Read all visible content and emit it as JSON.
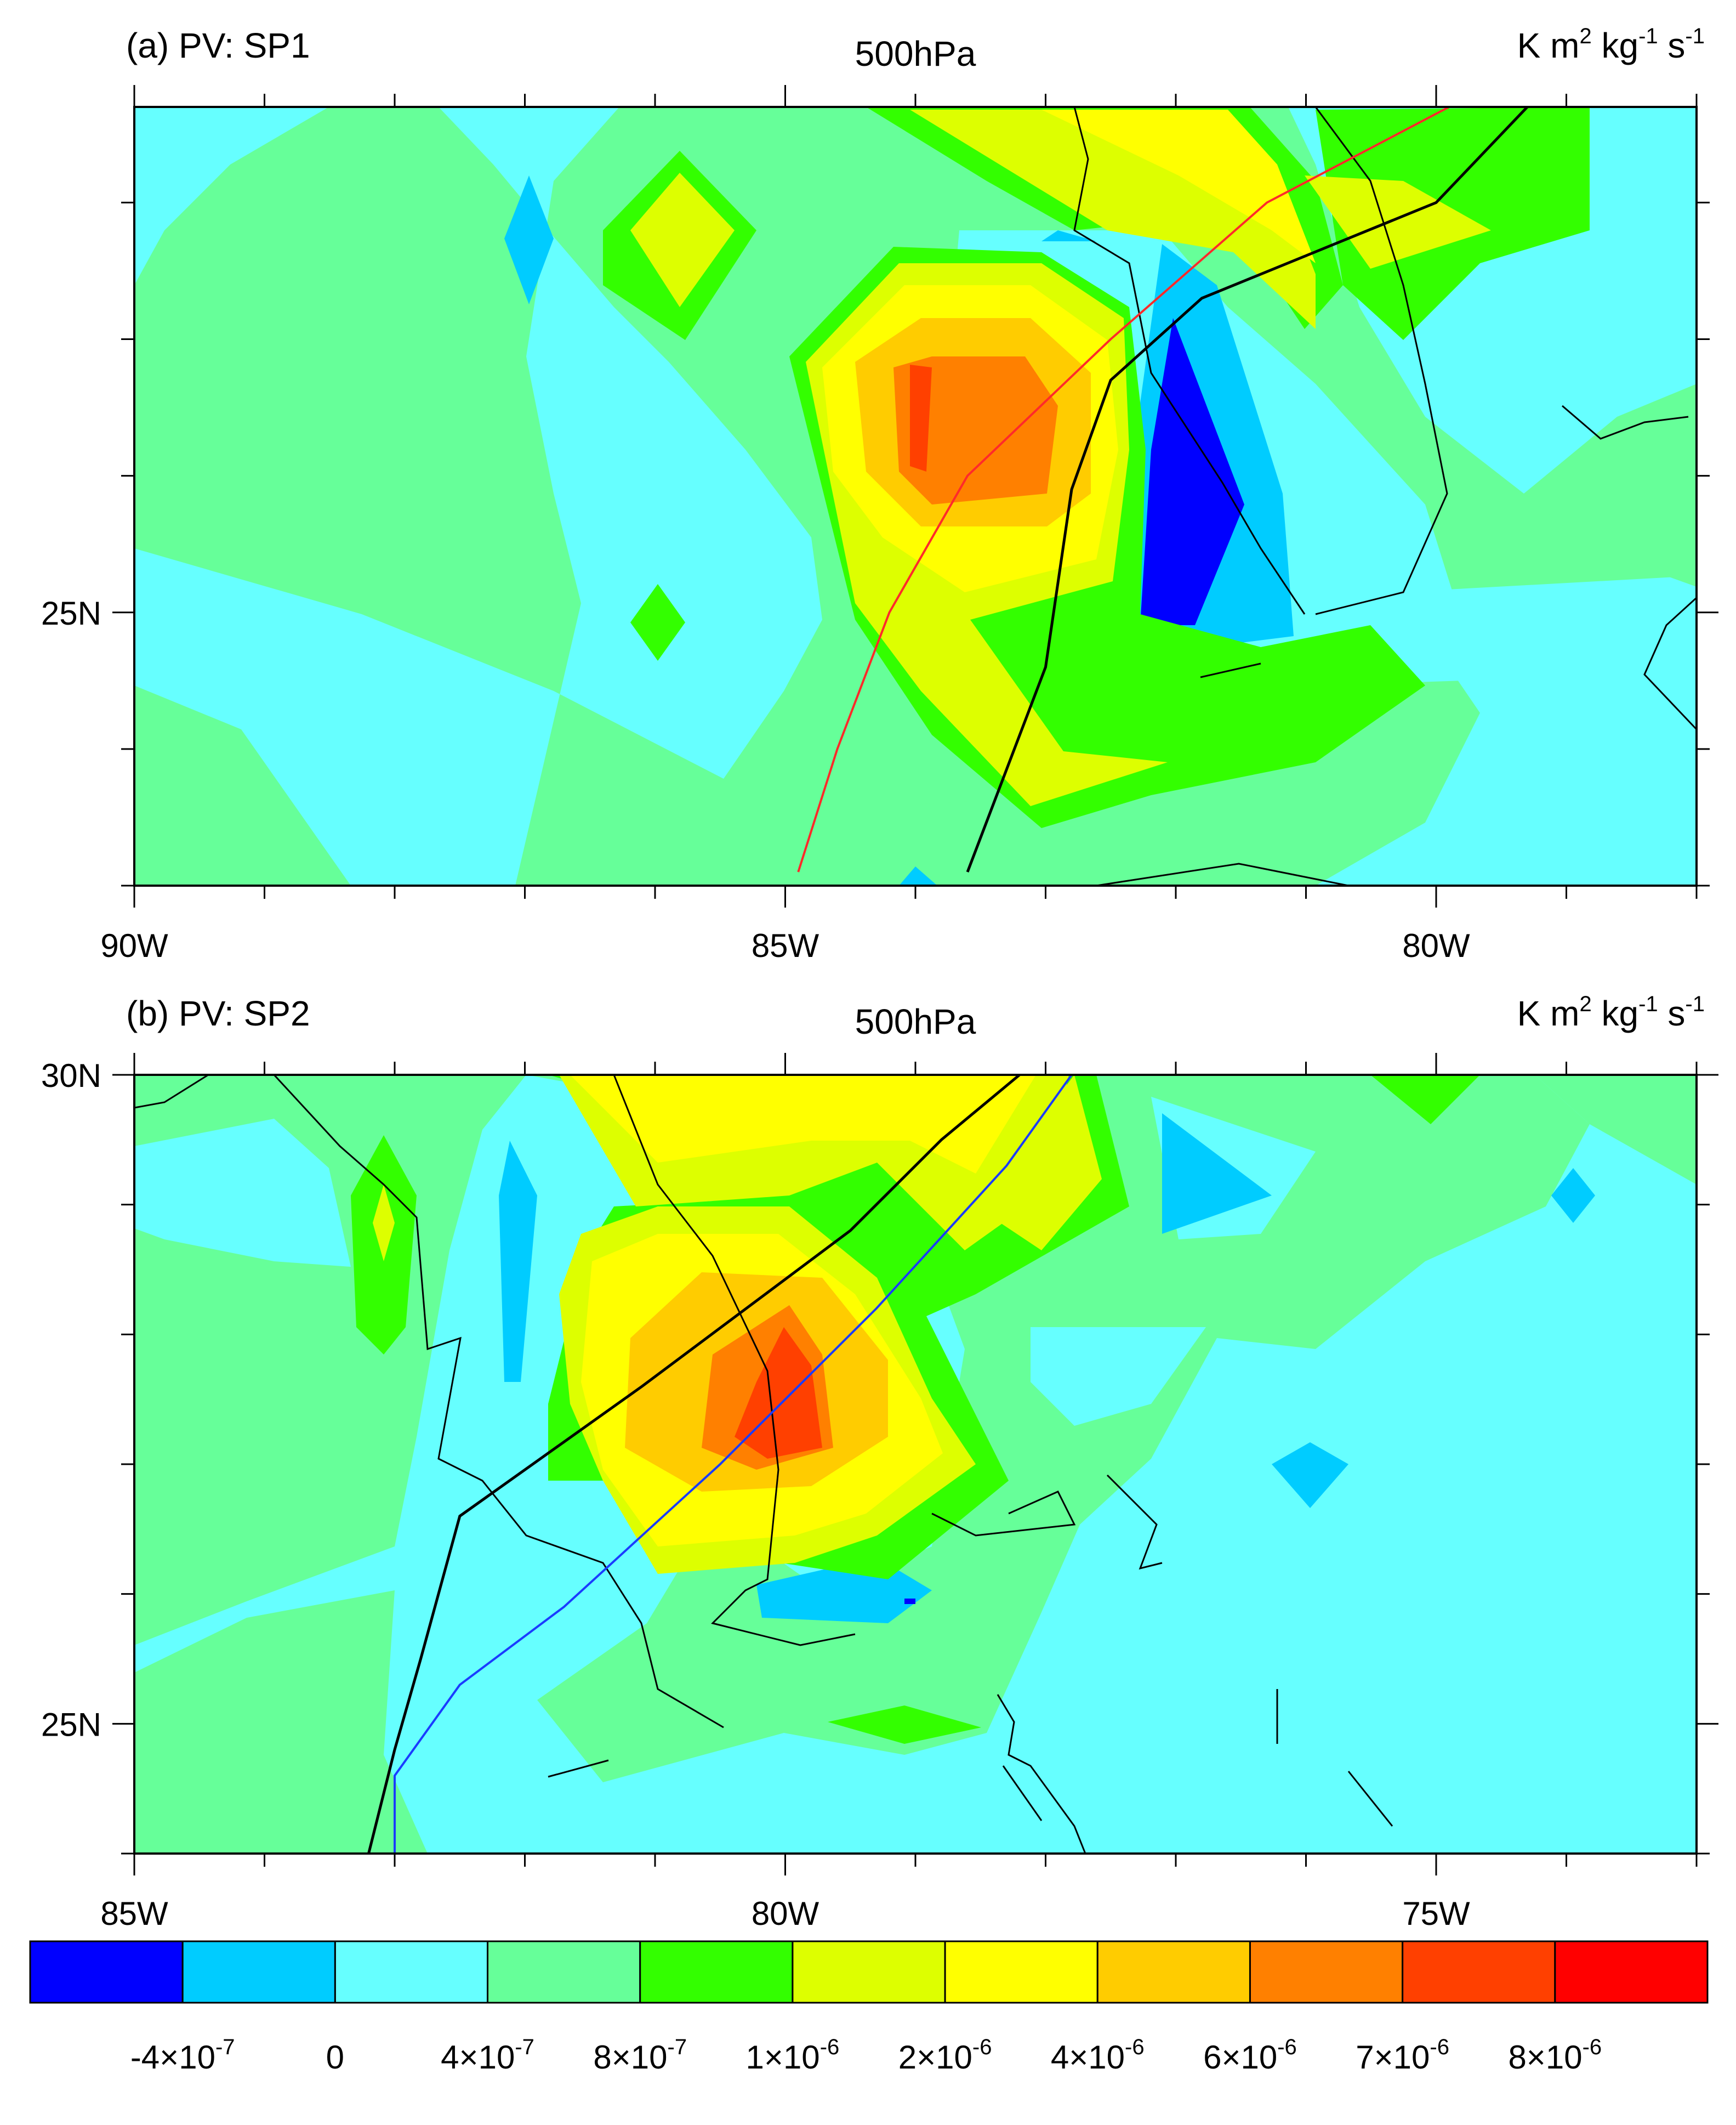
{
  "chart_data": [
    {
      "type": "heatmap",
      "panel_label": "(a) PV: SP1",
      "level": "500hPa",
      "units": {
        "base": "K m",
        "m_exp": "2",
        "kg": " kg",
        "kg_exp": "-1",
        "s": " s",
        "s_exp": "-1"
      },
      "xlim": [
        -90,
        -78
      ],
      "ylim": [
        23.0,
        28.7
      ],
      "x_ticks": [
        {
          "v": -90,
          "label": "90W"
        },
        {
          "v": -85,
          "label": "85W"
        },
        {
          "v": -80,
          "label": "80W"
        }
      ],
      "y_ticks": [
        {
          "v": 25,
          "label": "25N"
        }
      ],
      "pv_field": [
        {
          "lon": -89.0,
          "lat": 27.0,
          "level": 3
        },
        {
          "lon": -88.0,
          "lat": 27.8,
          "level": 3
        },
        {
          "lon": -87.0,
          "lat": 27.5,
          "level": 1
        },
        {
          "lon": -86.0,
          "lat": 27.3,
          "level": 5
        },
        {
          "lon": -86.0,
          "lat": 25.0,
          "level": 4
        },
        {
          "lon": -84.0,
          "lat": 26.8,
          "level": 9
        },
        {
          "lon": -84.5,
          "lat": 26.2,
          "level": 6
        },
        {
          "lon": -82.8,
          "lat": 28.5,
          "level": 5
        },
        {
          "lon": -81.8,
          "lat": 25.9,
          "level": 0
        },
        {
          "lon": -81.9,
          "lat": 28.0,
          "level": 1
        },
        {
          "lon": -83.0,
          "lat": 24.6,
          "level": 5
        },
        {
          "lon": -80.0,
          "lat": 27.6,
          "level": 5
        },
        {
          "lon": -80.0,
          "lat": 28.6,
          "level": 1
        },
        {
          "lon": -79.0,
          "lat": 26.2,
          "level": 2
        },
        {
          "lon": -78.5,
          "lat": 25.0,
          "level": 2
        }
      ],
      "tracks": [
        {
          "color": "#ff2a2a",
          "lon": [
            -84.9,
            -84.6,
            -84.2,
            -83.6,
            -82.5,
            -81.3,
            -79.9,
            -78.9
          ],
          "lat": [
            23.1,
            24.0,
            25.0,
            26.0,
            27.0,
            28.0,
            28.7,
            28.8
          ]
        },
        {
          "color": "#000000",
          "lon": [
            -83.6,
            -83.0,
            -82.8,
            -82.5,
            -81.8,
            -80.0,
            -79.3,
            -78.5
          ],
          "lat": [
            23.1,
            24.6,
            25.9,
            26.7,
            27.3,
            28.0,
            28.7,
            29.0
          ]
        }
      ]
    },
    {
      "type": "heatmap",
      "panel_label": "(b) PV: SP2",
      "level": "500hPa",
      "units": {
        "base": "K m",
        "m_exp": "2",
        "kg": " kg",
        "kg_exp": "-1",
        "s": " s",
        "s_exp": "-1"
      },
      "xlim": [
        -85,
        -73
      ],
      "ylim": [
        24.0,
        30.0
      ],
      "x_ticks": [
        {
          "v": -85,
          "label": "85W"
        },
        {
          "v": -80,
          "label": "80W"
        },
        {
          "v": -75,
          "label": "75W"
        }
      ],
      "y_ticks": [
        {
          "v": 25,
          "label": "25N"
        },
        {
          "v": 30,
          "label": "30N"
        }
      ],
      "pv_field": [
        {
          "lon": -83.0,
          "lat": 28.8,
          "level": 4
        },
        {
          "lon": -82.0,
          "lat": 28.6,
          "level": 1
        },
        {
          "lon": -81.0,
          "lat": 29.5,
          "level": 5
        },
        {
          "lon": -80.0,
          "lat": 27.2,
          "level": 10
        },
        {
          "lon": -80.3,
          "lat": 27.5,
          "level": 8
        },
        {
          "lon": -79.0,
          "lat": 28.9,
          "level": 1
        },
        {
          "lon": -78.0,
          "lat": 29.5,
          "level": 5
        },
        {
          "lon": -77.0,
          "lat": 28.9,
          "level": 1
        },
        {
          "lon": -76.0,
          "lat": 27.0,
          "level": 1
        },
        {
          "lon": -74.0,
          "lat": 28.9,
          "level": 1
        },
        {
          "lon": -80.5,
          "lat": 25.9,
          "level": 1
        },
        {
          "lon": -79.0,
          "lat": 25.0,
          "level": 4
        },
        {
          "lon": -84.0,
          "lat": 28.3,
          "level": 4
        },
        {
          "lon": -75.0,
          "lat": 29.7,
          "level": 4
        },
        {
          "lon": -76.0,
          "lat": 24.5,
          "level": 2
        }
      ],
      "tracks": [
        {
          "color": "#000000",
          "lon": [
            -83.2,
            -83.0,
            -82.8,
            -82.5,
            -81.1,
            -79.5,
            -78.8,
            -78.2
          ],
          "lat": [
            24.0,
            24.8,
            25.5,
            26.6,
            27.6,
            28.8,
            29.5,
            30.0
          ]
        },
        {
          "color": "#1a3cff",
          "lon": [
            -83.0,
            -83.0,
            -82.5,
            -81.7,
            -80.5,
            -79.3,
            -78.3,
            -77.8
          ],
          "lat": [
            24.0,
            24.6,
            25.3,
            25.9,
            27.0,
            28.2,
            29.3,
            30.0
          ]
        }
      ]
    }
  ],
  "colorbar": {
    "colors": [
      "#0000ff",
      "#00ccff",
      "#66ffff",
      "#66ff99",
      "#33ff00",
      "#ddff00",
      "#ffff00",
      "#ffcc00",
      "#ff8000",
      "#ff4000",
      "#ff0000"
    ],
    "labels": [
      {
        "base": "-4×10",
        "exp": "-7"
      },
      {
        "base": "0",
        "exp": ""
      },
      {
        "base": "4×10",
        "exp": "-7"
      },
      {
        "base": "8×10",
        "exp": "-7"
      },
      {
        "base": "1×10",
        "exp": "-6"
      },
      {
        "base": "2×10",
        "exp": "-6"
      },
      {
        "base": "4×10",
        "exp": "-6"
      },
      {
        "base": "6×10",
        "exp": "-6"
      },
      {
        "base": "7×10",
        "exp": "-6"
      },
      {
        "base": "8×10",
        "exp": "-6"
      }
    ]
  }
}
